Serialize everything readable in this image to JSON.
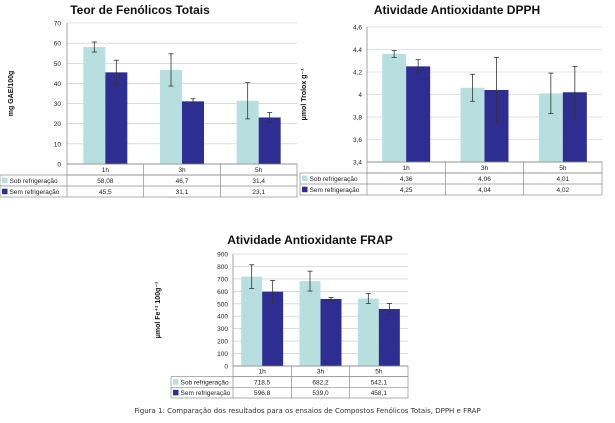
{
  "caption": "Figura 1: Comparação dos resultados para os ensaios de Compostos Fenólicos Totais, DPPH e FRAP",
  "colors": {
    "sob": "#b7dfe0",
    "sem": "#2e2e92",
    "error": "#333333",
    "grid": "#c8c8c8",
    "border": "#8c8c8c"
  },
  "chart_data": [
    {
      "type": "bar",
      "title": "Teor de Fenólicos Totais",
      "ylabel": "mg  GAE/100g",
      "categories": [
        "1h",
        "3h",
        "5h"
      ],
      "ylim": [
        0,
        70
      ],
      "yticks": [
        "0",
        "10",
        "20",
        "30",
        "40",
        "50",
        "60",
        "70"
      ],
      "ytick_values": [
        0,
        10,
        20,
        30,
        40,
        50,
        60,
        70
      ],
      "grid": true,
      "legend": "table",
      "series": [
        {
          "name": "Sob refrigeração",
          "values": [
            58.08,
            46.7,
            31.4
          ],
          "labels": [
            "58,08",
            "46,7",
            "31,4"
          ],
          "errors": [
            2.5,
            8,
            9
          ]
        },
        {
          "name": "Sem refrigeração",
          "values": [
            45.5,
            31.1,
            23.1
          ],
          "labels": [
            "45,5",
            "31,1",
            "23,1"
          ],
          "errors": [
            6,
            1.3,
            2.5
          ]
        }
      ]
    },
    {
      "type": "bar",
      "title": "Atividade Antioxidante DPPH",
      "ylabel": "μmol Trolox g⁻¹",
      "categories": [
        "1h",
        "3h",
        "5h"
      ],
      "ylim": [
        3.4,
        4.6
      ],
      "yticks": [
        "3,4",
        "3,6",
        "3,8",
        "4",
        "4,2",
        "4,4",
        "4,6"
      ],
      "ytick_values": [
        3.4,
        3.6,
        3.8,
        4.0,
        4.2,
        4.4,
        4.6
      ],
      "grid": true,
      "legend": "table",
      "series": [
        {
          "name": "Sob refrigeração",
          "values": [
            4.36,
            4.06,
            4.01
          ],
          "labels": [
            "4,36",
            "4,06",
            "4,01"
          ],
          "errors": [
            0.03,
            0.12,
            0.18
          ]
        },
        {
          "name": "Sem refrigeração",
          "values": [
            4.25,
            4.04,
            4.02
          ],
          "labels": [
            "4,25",
            "4,04",
            "4,02"
          ],
          "errors": [
            0.06,
            0.29,
            0.23
          ]
        }
      ]
    },
    {
      "type": "bar",
      "title": "Atividade Antioxidante FRAP",
      "ylabel": "μmol Fe⁺² 100g⁻¹",
      "categories": [
        "1h",
        "3h",
        "5h"
      ],
      "ylim": [
        0,
        900
      ],
      "yticks": [
        "0",
        "100",
        "200",
        "300",
        "400",
        "500",
        "600",
        "700",
        "800",
        "900"
      ],
      "ytick_values": [
        0,
        100,
        200,
        300,
        400,
        500,
        600,
        700,
        800,
        900
      ],
      "grid": true,
      "legend": "table",
      "series": [
        {
          "name": "Sob refrigeração",
          "values": [
            718.5,
            682.2,
            542.1
          ],
          "labels": [
            "718,5",
            "682,2",
            "542,1"
          ],
          "errors": [
            95,
            80,
            40
          ]
        },
        {
          "name": "Sem refrigeração",
          "values": [
            596.8,
            539.0,
            458.1
          ],
          "labels": [
            "596,8",
            "539,0",
            "458,1"
          ],
          "errors": [
            90,
            12,
            45
          ]
        }
      ]
    }
  ]
}
